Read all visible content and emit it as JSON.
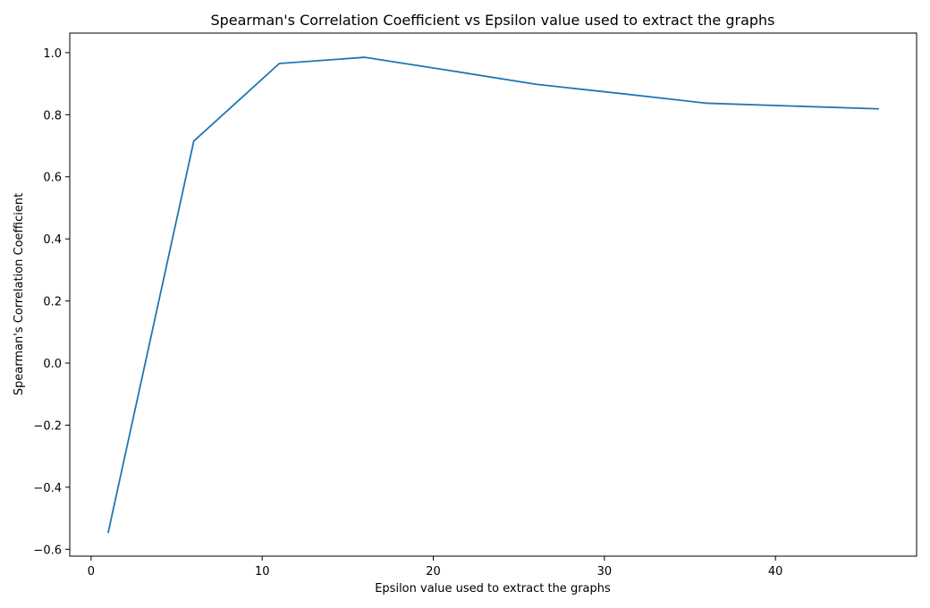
{
  "chart_data": {
    "type": "line",
    "title": "Spearman's Correlation Coefficient vs Epsilon value used to extract the graphs",
    "xlabel": "Epsilon value used to extract the graphs",
    "ylabel": "Spearman's Correlation Coefficient",
    "xlim": [
      -1.25,
      48.25
    ],
    "ylim": [
      -0.622,
      1.063
    ],
    "xticks": [
      0,
      10,
      20,
      30,
      40
    ],
    "xtick_labels": [
      "0",
      "10",
      "20",
      "30",
      "40"
    ],
    "yticks": [
      -0.6,
      -0.4,
      -0.2,
      0.0,
      0.2,
      0.4,
      0.6,
      0.8,
      1.0
    ],
    "ytick_labels": [
      "−0.6",
      "−0.4",
      "−0.2",
      "0.0",
      "0.2",
      "0.4",
      "0.6",
      "0.8",
      "1.0"
    ],
    "grid": false,
    "legend": false,
    "series": [
      {
        "color": "#1f77b4",
        "x": [
          1,
          6,
          11,
          16,
          21,
          26,
          31,
          36,
          41,
          46
        ],
        "y": [
          -0.545,
          0.715,
          0.965,
          0.985,
          0.942,
          0.898,
          0.868,
          0.837,
          0.828,
          0.819
        ]
      }
    ]
  }
}
